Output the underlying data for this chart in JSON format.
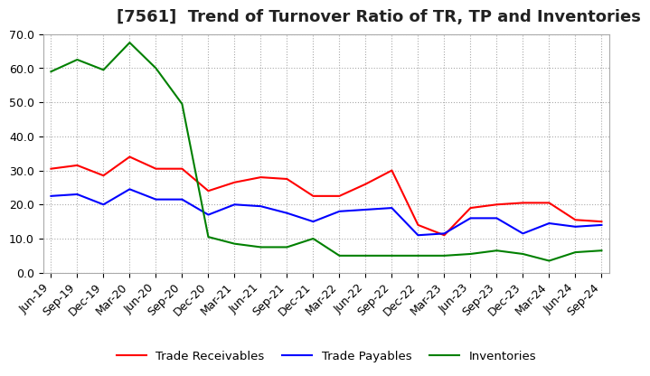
{
  "title": "[7561]  Trend of Turnover Ratio of TR, TP and Inventories",
  "x_labels": [
    "Jun-19",
    "Sep-19",
    "Dec-19",
    "Mar-20",
    "Jun-20",
    "Sep-20",
    "Dec-20",
    "Mar-21",
    "Jun-21",
    "Sep-21",
    "Dec-21",
    "Mar-22",
    "Jun-22",
    "Sep-22",
    "Dec-22",
    "Mar-23",
    "Jun-23",
    "Sep-23",
    "Dec-23",
    "Mar-24",
    "Jun-24",
    "Sep-24"
  ],
  "trade_receivables": [
    30.5,
    31.5,
    28.5,
    34.0,
    30.5,
    30.5,
    24.0,
    26.5,
    28.0,
    27.5,
    22.5,
    22.5,
    26.0,
    30.0,
    14.0,
    11.0,
    19.0,
    20.0,
    20.5,
    20.5,
    15.5,
    15.0
  ],
  "trade_payables": [
    22.5,
    23.0,
    20.0,
    24.5,
    21.5,
    21.5,
    17.0,
    20.0,
    19.5,
    17.5,
    15.0,
    18.0,
    18.5,
    19.0,
    11.0,
    11.5,
    16.0,
    16.0,
    11.5,
    14.5,
    13.5,
    14.0
  ],
  "inventories": [
    59.0,
    62.5,
    59.5,
    67.5,
    60.0,
    49.5,
    10.5,
    8.5,
    7.5,
    7.5,
    10.0,
    5.0,
    5.0,
    5.0,
    5.0,
    5.0,
    5.5,
    6.5,
    5.5,
    3.5,
    6.0,
    6.5
  ],
  "ylim": [
    0,
    70
  ],
  "yticks": [
    0.0,
    10.0,
    20.0,
    30.0,
    40.0,
    50.0,
    60.0,
    70.0
  ],
  "tr_color": "#ff0000",
  "tp_color": "#0000ff",
  "inv_color": "#008000",
  "legend_labels": [
    "Trade Receivables",
    "Trade Payables",
    "Inventories"
  ],
  "background_color": "#ffffff",
  "grid_color": "#aaaaaa",
  "title_fontsize": 13,
  "tick_fontsize": 9
}
